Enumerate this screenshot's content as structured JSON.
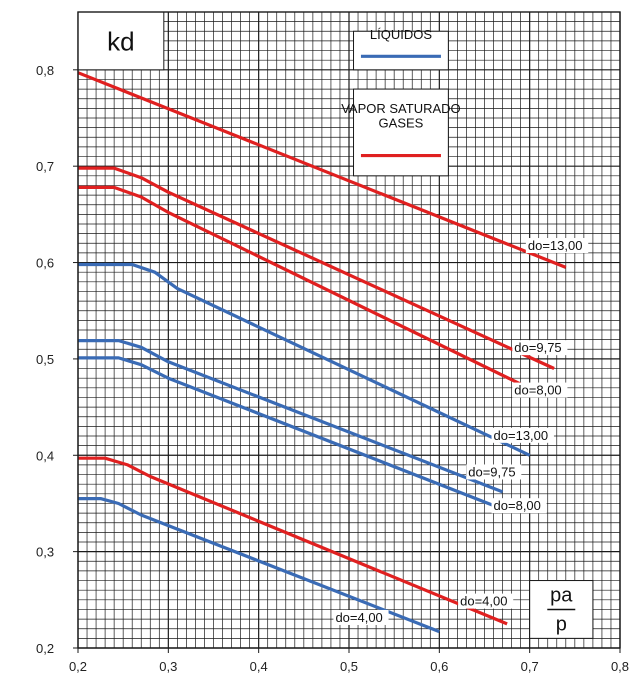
{
  "chart_data": {
    "type": "line",
    "title": "",
    "ylabel": "kd",
    "xlabel_top": "pa",
    "xlabel_bottom": "p",
    "xlim": [
      0.2,
      0.8
    ],
    "ylim": [
      0.2,
      0.86
    ],
    "x_ticks": [
      "0,2",
      "0,3",
      "0,4",
      "0,5",
      "0,6",
      "0,7",
      "0,8"
    ],
    "y_ticks": [
      "0,2",
      "0,3",
      "0,4",
      "0,5",
      "0,6",
      "0,7",
      "0,8"
    ],
    "grid": true,
    "legend": {
      "placement": "top-right",
      "entries": [
        {
          "label": "LÍQUIDOS",
          "color": "#3a6bb5"
        },
        {
          "label": "VAPOR SATURADO",
          "label2": "GASES",
          "color": "#e02020"
        }
      ]
    },
    "series": [
      {
        "group": "gases",
        "label": "do=13,00",
        "color": "#e02020",
        "points": [
          [
            0.2,
            0.797
          ],
          [
            0.74,
            0.595
          ]
        ]
      },
      {
        "group": "gases",
        "label": "do=9,75",
        "color": "#e02020",
        "points": [
          [
            0.2,
            0.698
          ],
          [
            0.24,
            0.698
          ],
          [
            0.27,
            0.688
          ],
          [
            0.3,
            0.673
          ],
          [
            0.727,
            0.49
          ]
        ]
      },
      {
        "group": "gases",
        "label": "do=8,00",
        "color": "#e02020",
        "points": [
          [
            0.2,
            0.678
          ],
          [
            0.24,
            0.678
          ],
          [
            0.27,
            0.668
          ],
          [
            0.3,
            0.652
          ],
          [
            0.705,
            0.467
          ]
        ]
      },
      {
        "group": "liquidos",
        "label": "do=13,00",
        "color": "#3a6bb5",
        "points": [
          [
            0.2,
            0.598
          ],
          [
            0.26,
            0.598
          ],
          [
            0.285,
            0.59
          ],
          [
            0.31,
            0.573
          ],
          [
            0.7,
            0.4
          ]
        ]
      },
      {
        "group": "liquidos",
        "label": "do=9,75",
        "color": "#3a6bb5",
        "points": [
          [
            0.2,
            0.519
          ],
          [
            0.245,
            0.519
          ],
          [
            0.27,
            0.512
          ],
          [
            0.3,
            0.497
          ],
          [
            0.67,
            0.362
          ]
        ]
      },
      {
        "group": "liquidos",
        "label": "do=8,00",
        "color": "#3a6bb5",
        "points": [
          [
            0.2,
            0.501
          ],
          [
            0.245,
            0.501
          ],
          [
            0.27,
            0.494
          ],
          [
            0.3,
            0.48
          ],
          [
            0.665,
            0.346
          ]
        ]
      },
      {
        "group": "gases",
        "label": "do=4,00",
        "color": "#e02020",
        "points": [
          [
            0.2,
            0.397
          ],
          [
            0.23,
            0.397
          ],
          [
            0.255,
            0.39
          ],
          [
            0.28,
            0.378
          ],
          [
            0.675,
            0.225
          ]
        ]
      },
      {
        "group": "liquidos",
        "label": "do=4,00",
        "color": "#3a6bb5",
        "points": [
          [
            0.2,
            0.355
          ],
          [
            0.225,
            0.355
          ],
          [
            0.245,
            0.35
          ],
          [
            0.27,
            0.338
          ],
          [
            0.6,
            0.217
          ]
        ]
      }
    ],
    "curve_labels": [
      {
        "text": "do=13,00",
        "x": 0.698,
        "y": 0.613
      },
      {
        "text": "do=9,75",
        "x": 0.683,
        "y": 0.507
      },
      {
        "text": "do=8,00",
        "x": 0.683,
        "y": 0.463
      },
      {
        "text": "do=13,00",
        "x": 0.66,
        "y": 0.416
      },
      {
        "text": "do=9,75",
        "x": 0.632,
        "y": 0.378
      },
      {
        "text": "do=8,00",
        "x": 0.66,
        "y": 0.343
      },
      {
        "text": "do=4,00",
        "x": 0.623,
        "y": 0.244
      },
      {
        "text": "do=4,00",
        "x": 0.485,
        "y": 0.227
      }
    ]
  }
}
